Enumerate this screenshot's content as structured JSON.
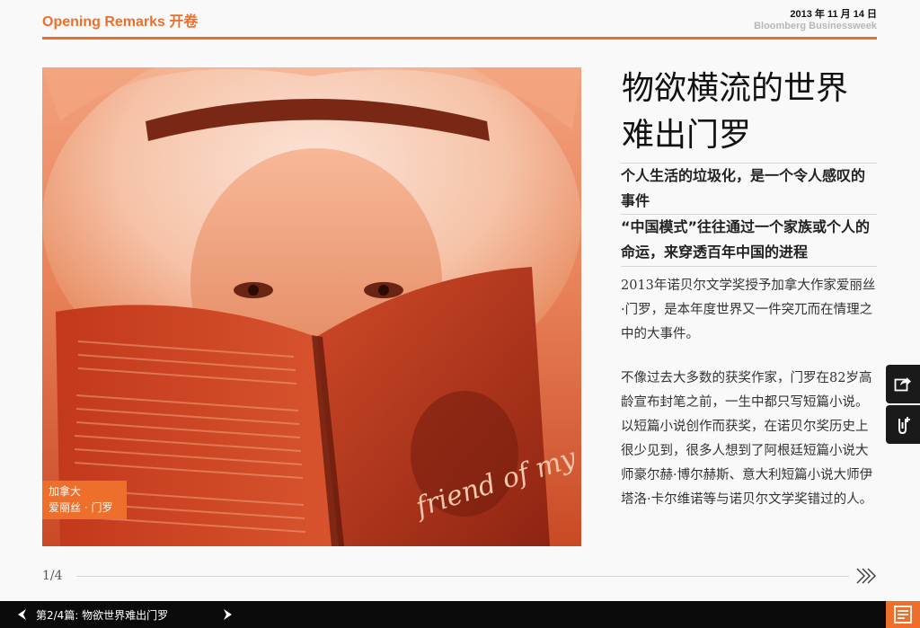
{
  "header": {
    "section": "Opening Remarks 开卷",
    "date": "2013 年 11 月 14 日",
    "magazine": "Bloomberg Businessweek"
  },
  "photo": {
    "caption_line1": "加拿大",
    "caption_line2": "爱丽丝 · 门罗",
    "book_text": "friend of my youth"
  },
  "article": {
    "title_line1": "物欲横流的世界",
    "title_line2": "难出门罗",
    "subtitle1": "个人生活的垃圾化，是一个令人感叹的事件",
    "subtitle2": "“中国模式”往往通过一个家族或个人的命运，来穿透百年中国的进程",
    "paragraph1": "2013年诺贝尔文学奖授予加拿大作家爱丽丝·门罗，是本年度世界又一件突兀而在情理之中的大事件。",
    "paragraph2": "不像过去大多数的获奖作家，门罗在82岁高龄宣布封笔之前，一生中都只写短篇小说。以短篇小说创作而获奖，在诺贝尔奖历史上很少见到，很多人想到了阿根廷短篇小说大师豪尔赫·博尔赫斯、意大利短篇小说大师伊塔洛·卡尔维诺等与诺贝尔文学奖错过的人。"
  },
  "pager": {
    "page": "1/4"
  },
  "bottom": {
    "label": "第2/4篇: 物欲世界难出门罗"
  },
  "icons": {
    "share": "share-icon",
    "clip": "paperclip-add-icon",
    "next_page": "double-chevron-right-icon",
    "prev": "triangle-left-icon",
    "next": "triangle-right-icon",
    "toc": "table-of-contents-icon"
  },
  "colors": {
    "accent": "#ee6e2b",
    "bar": "#0a0a0a"
  }
}
